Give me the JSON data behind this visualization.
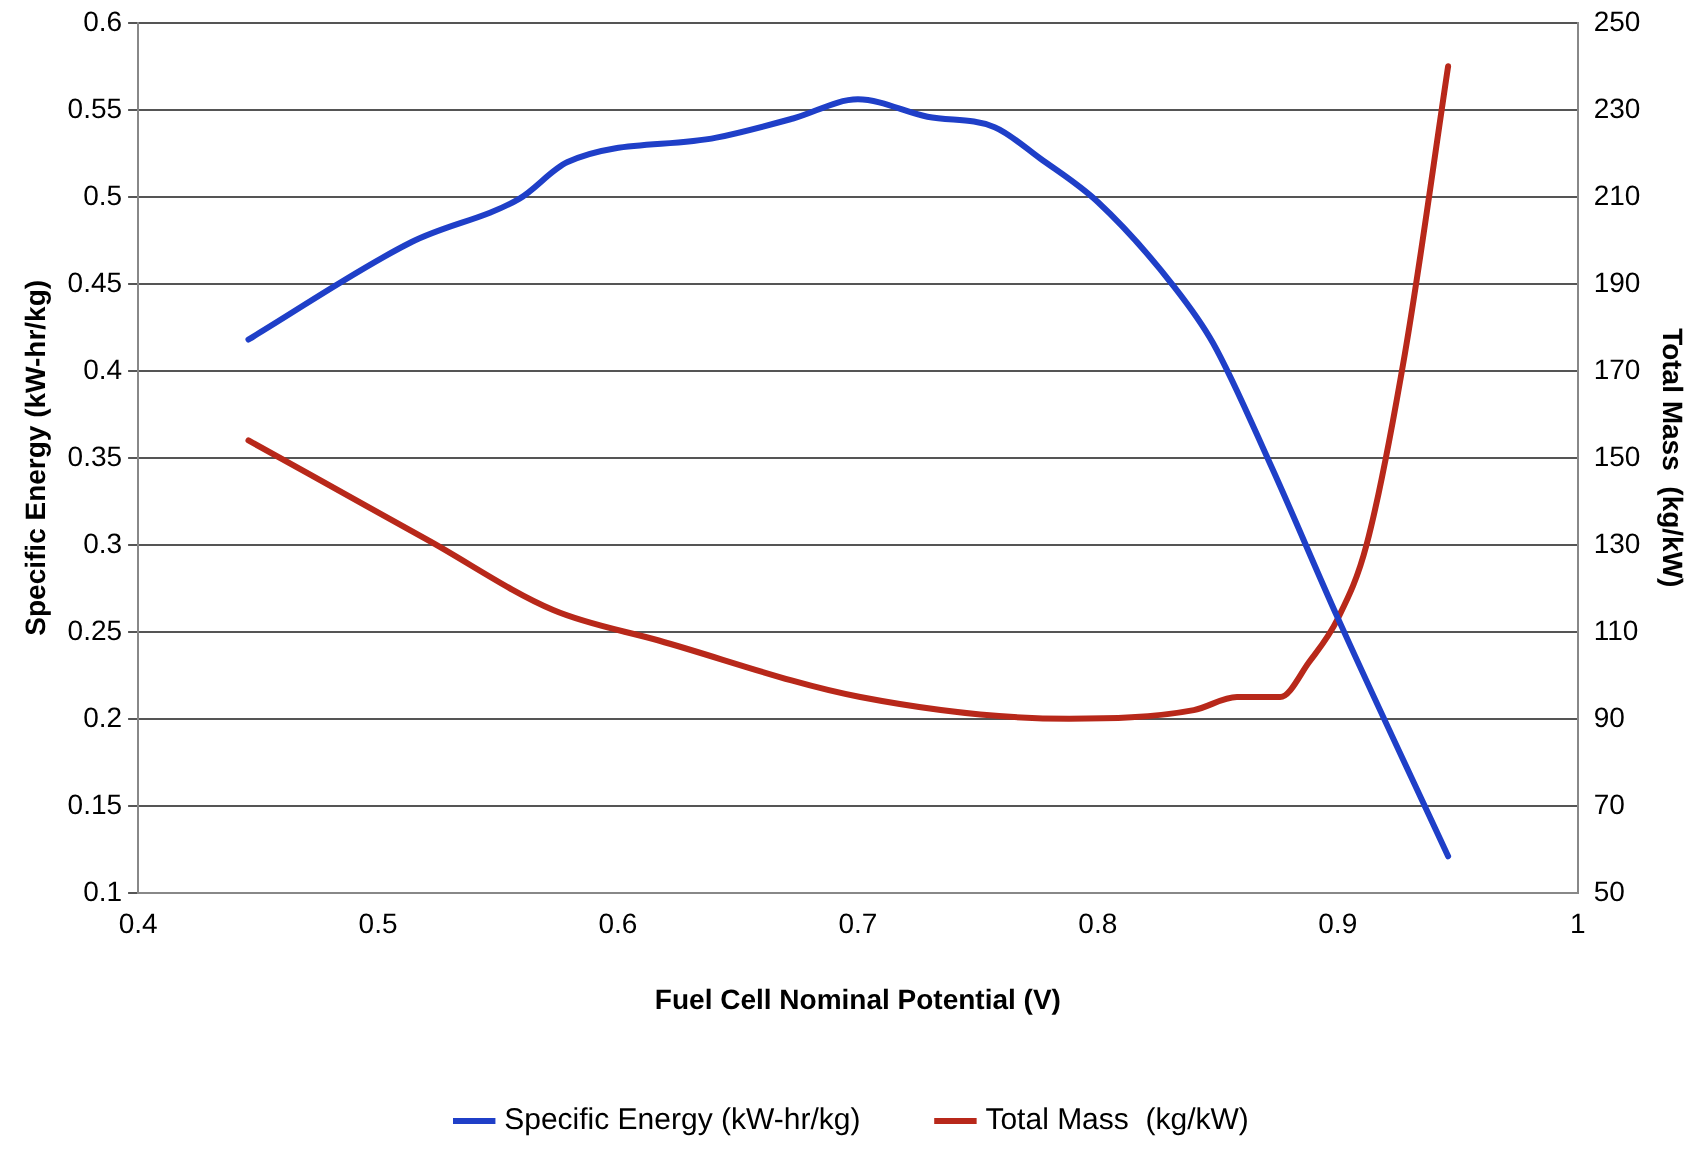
{
  "chart_data": {
    "type": "line",
    "xlabel": "Fuel Cell Nominal Potential (V)",
    "ylabel": "Specific Energy (kW-hr/kg)",
    "y2label": "Total Mass  (kg/kW)",
    "xlim": [
      0.4,
      1
    ],
    "xticks": [
      0.4,
      0.5,
      0.6,
      0.7,
      0.8,
      0.9,
      1
    ],
    "ylim": [
      0.1,
      0.6
    ],
    "yticks": [
      0.1,
      0.15,
      0.2,
      0.25,
      0.3,
      0.35,
      0.4,
      0.45,
      0.5,
      0.55,
      0.6
    ],
    "y2lim": [
      50,
      250
    ],
    "y2ticks": [
      50,
      70,
      90,
      110,
      130,
      150,
      170,
      190,
      210,
      230,
      250
    ],
    "grid": "y",
    "legend": "bottom",
    "marker": "none",
    "line_style": "solid",
    "series": [
      {
        "name": "Specific Energy (kW-hr/kg)",
        "color": "#1f3fc8",
        "x": [
          0.446,
          0.514,
          0.559,
          0.579,
          0.641,
          0.673,
          0.7,
          0.729,
          0.757,
          0.776,
          0.8,
          0.832,
          0.848,
          0.872,
          0.9,
          0.946
        ],
        "values": [
          0.418,
          0.474,
          0.499,
          0.52,
          0.534,
          0.545,
          0.556,
          0.546,
          0.54,
          0.522,
          0.497,
          0.448,
          0.416,
          0.346,
          0.258,
          0.121
        ]
      },
      {
        "name": "Total Mass  (kg/kW)",
        "color": "#b8281a",
        "axis": "y2",
        "x": [
          0.446,
          0.521,
          0.573,
          0.617,
          0.701,
          0.788,
          0.84,
          0.858,
          0.876,
          0.888,
          0.9,
          0.912,
          0.928,
          0.946
        ],
        "values": [
          154,
          131,
          115,
          108,
          95,
          90,
          92,
          95,
          95,
          103,
          113,
          130,
          174,
          240
        ]
      }
    ]
  }
}
